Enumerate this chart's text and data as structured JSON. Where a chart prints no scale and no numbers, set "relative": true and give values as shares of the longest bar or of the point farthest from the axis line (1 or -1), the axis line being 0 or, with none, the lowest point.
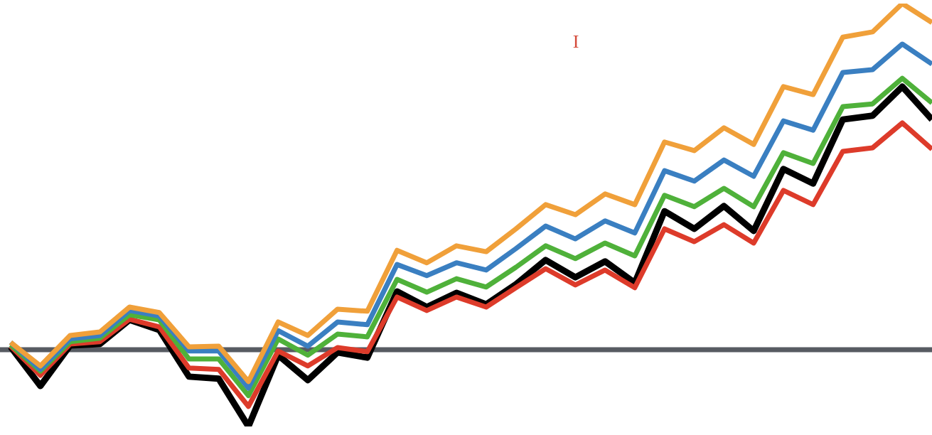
{
  "chart_data": {
    "type": "line",
    "relative": true,
    "legend": false,
    "marker": "none",
    "line_style": "solid",
    "categories": [
      null,
      null,
      null,
      null,
      null,
      null,
      null,
      null,
      null,
      null,
      null,
      null,
      null,
      null,
      null,
      null,
      null,
      null,
      null,
      null,
      null,
      null,
      null,
      null,
      null,
      null,
      null,
      null,
      null,
      null,
      null,
      null
    ],
    "annotations": [
      "I"
    ],
    "series": [
      {
        "color": "#000000",
        "values": [
          0.008,
          -0.105,
          0.012,
          0.016,
          0.086,
          0.057,
          -0.078,
          -0.084,
          -0.222,
          -0.016,
          -0.088,
          -0.008,
          -0.023,
          0.168,
          0.123,
          0.164,
          0.131,
          0.189,
          0.259,
          0.209,
          0.255,
          0.193,
          0.4,
          0.349,
          0.415,
          0.343,
          0.522,
          0.48,
          0.665,
          0.676,
          0.76,
          0.665
        ]
      },
      {
        "color": "#dd3b2a",
        "values": [
          0.01,
          -0.074,
          0.016,
          0.023,
          0.088,
          0.066,
          -0.053,
          -0.057,
          -0.164,
          -0.004,
          -0.047,
          0.006,
          -0.006,
          0.152,
          0.113,
          0.152,
          0.123,
          0.179,
          0.234,
          0.187,
          0.23,
          0.179,
          0.349,
          0.312,
          0.361,
          0.308,
          0.46,
          0.419,
          0.573,
          0.583,
          0.655,
          0.579
        ]
      },
      {
        "color": "#4fb13a",
        "values": [
          0.014,
          -0.062,
          0.023,
          0.033,
          0.101,
          0.086,
          -0.027,
          -0.027,
          -0.133,
          0.031,
          -0.016,
          0.045,
          0.037,
          0.203,
          0.166,
          0.205,
          0.181,
          0.238,
          0.3,
          0.263,
          0.308,
          0.271,
          0.446,
          0.413,
          0.466,
          0.413,
          0.569,
          0.538,
          0.702,
          0.71,
          0.784,
          0.713
        ]
      },
      {
        "color": "#3a7fc1",
        "values": [
          0.021,
          -0.057,
          0.031,
          0.041,
          0.113,
          0.097,
          -0.004,
          -0.004,
          -0.111,
          0.055,
          0.01,
          0.08,
          0.072,
          0.246,
          0.214,
          0.251,
          0.23,
          0.292,
          0.357,
          0.32,
          0.372,
          0.337,
          0.517,
          0.487,
          0.548,
          0.501,
          0.661,
          0.634,
          0.801,
          0.809,
          0.883,
          0.825
        ]
      },
      {
        "color": "#f0a03a",
        "values": [
          0.021,
          -0.047,
          0.041,
          0.051,
          0.123,
          0.107,
          0.008,
          0.01,
          -0.092,
          0.08,
          0.041,
          0.117,
          0.111,
          0.287,
          0.251,
          0.3,
          0.283,
          0.349,
          0.419,
          0.39,
          0.45,
          0.419,
          0.6,
          0.575,
          0.641,
          0.593,
          0.76,
          0.737,
          0.903,
          0.918,
          1,
          0.945
        ]
      }
    ]
  }
}
